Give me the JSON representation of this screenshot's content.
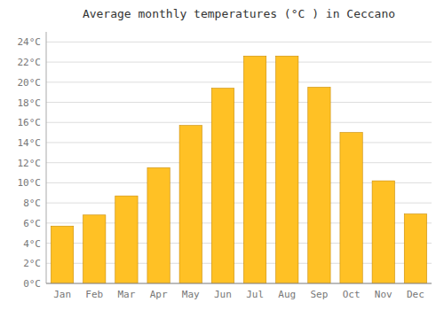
{
  "chart_data": {
    "type": "bar",
    "title": "Average monthly temperatures (°C ) in Ceccano",
    "categories": [
      "Jan",
      "Feb",
      "Mar",
      "Apr",
      "May",
      "Jun",
      "Jul",
      "Aug",
      "Sep",
      "Oct",
      "Nov",
      "Dec"
    ],
    "values": [
      5.7,
      6.8,
      8.7,
      11.5,
      15.7,
      19.4,
      22.6,
      22.6,
      19.5,
      15.0,
      10.2,
      6.9
    ],
    "color": "#FFC125",
    "ylim": [
      0,
      25
    ],
    "yticks": [
      {
        "value": 0,
        "label": "0°C"
      },
      {
        "value": 2,
        "label": "2°C"
      },
      {
        "value": 4,
        "label": "4°C"
      },
      {
        "value": 6,
        "label": "6°C"
      },
      {
        "value": 8,
        "label": "8°C"
      },
      {
        "value": 10,
        "label": "10°C"
      },
      {
        "value": 12,
        "label": "12°C"
      },
      {
        "value": 14,
        "label": "14°C"
      },
      {
        "value": 16,
        "label": "16°C"
      },
      {
        "value": 18,
        "label": "18°C"
      },
      {
        "value": 20,
        "label": "20°C"
      },
      {
        "value": 22,
        "label": "22°C"
      },
      {
        "value": 24,
        "label": "24°C"
      }
    ],
    "grid": true
  }
}
